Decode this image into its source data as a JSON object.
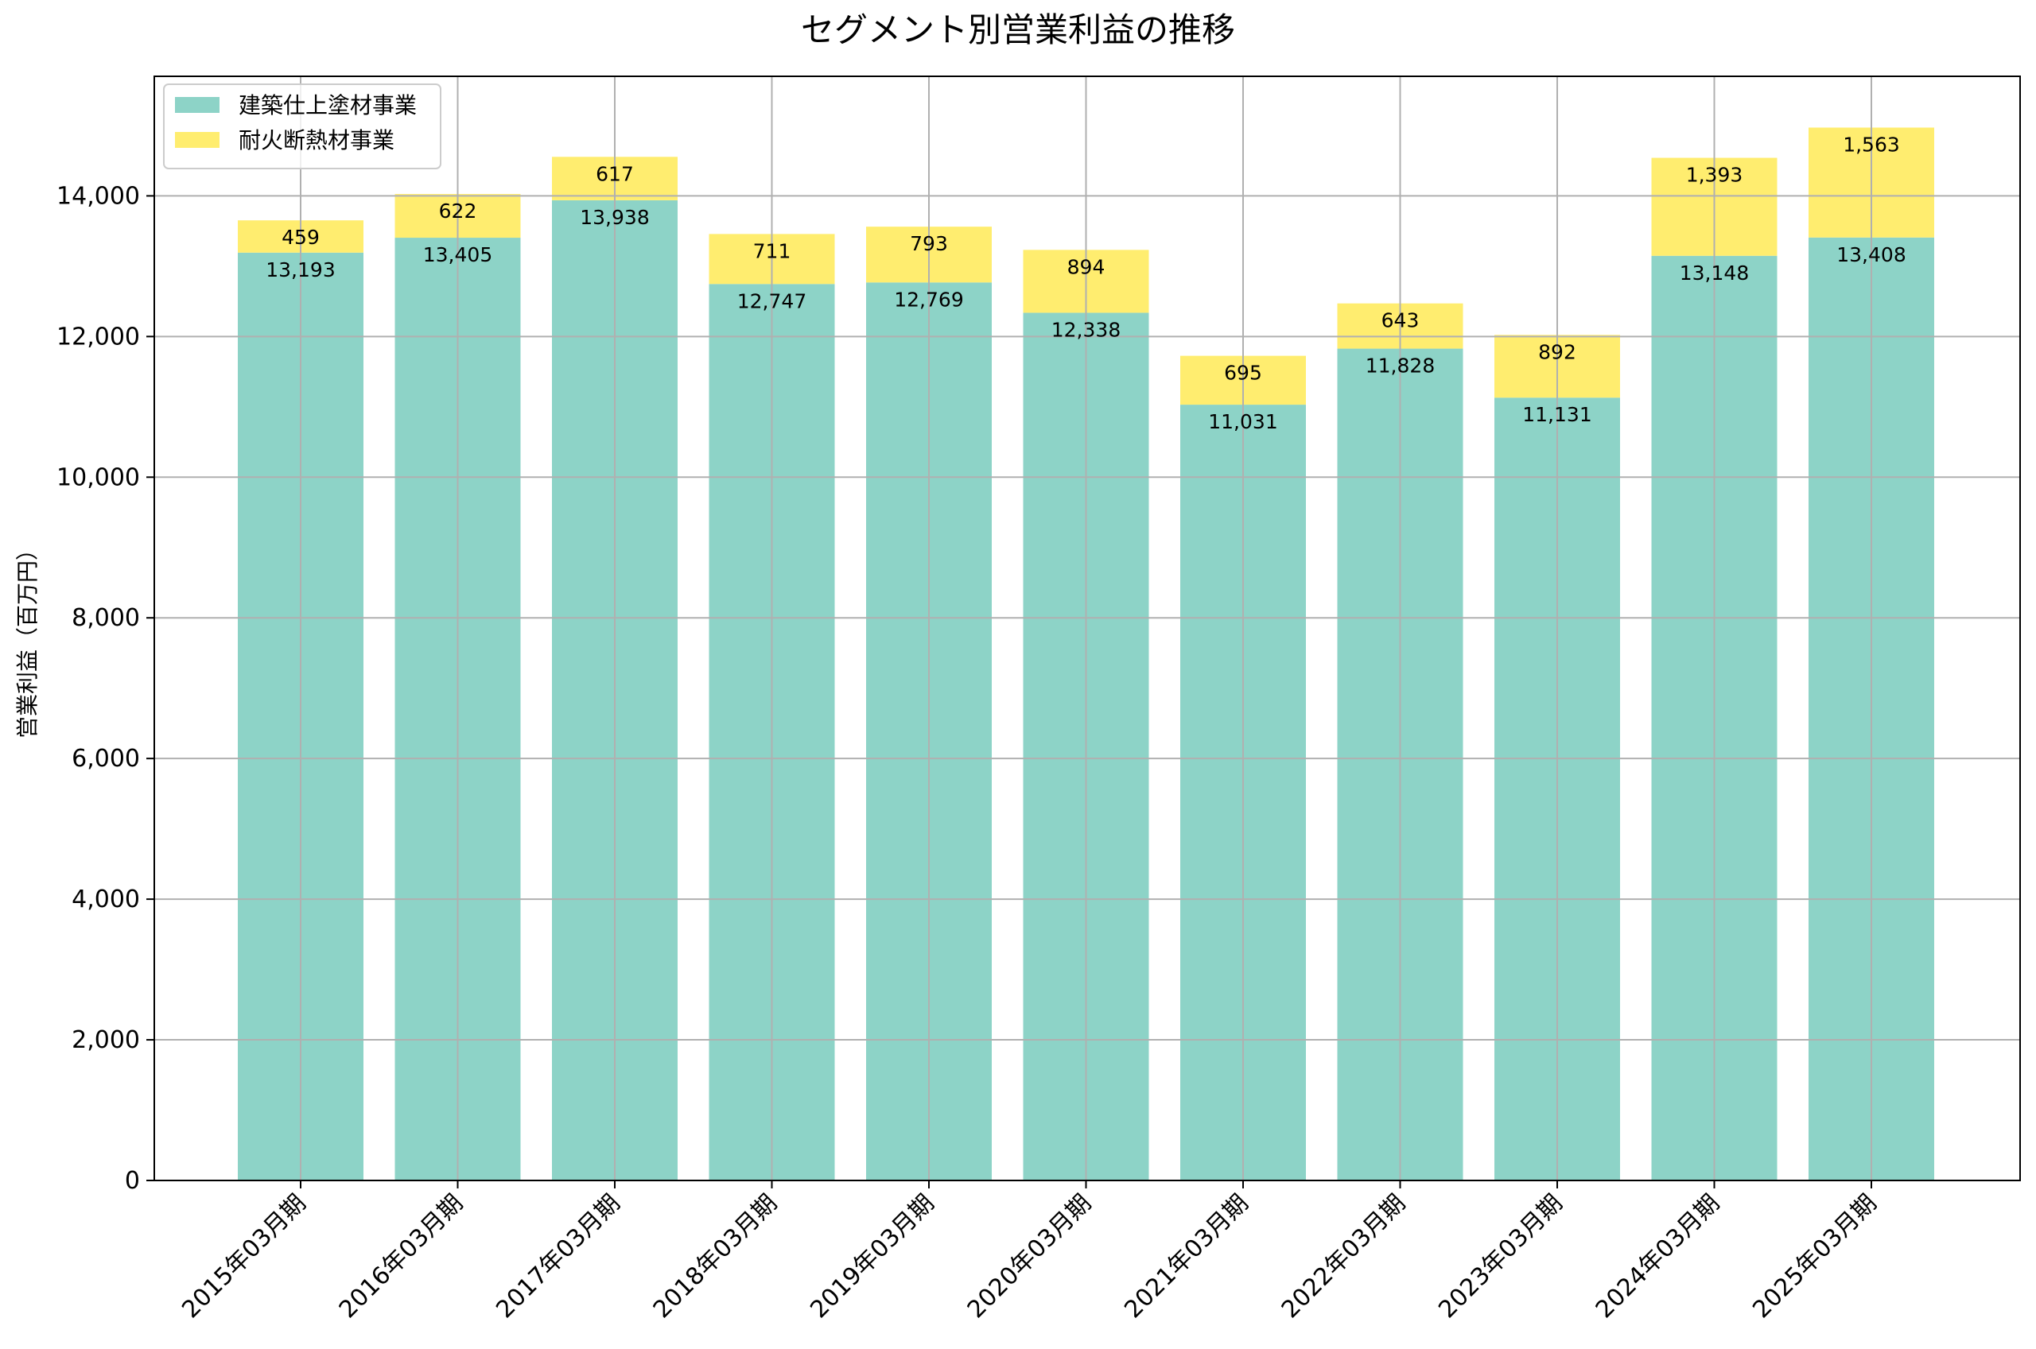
{
  "chart_data": {
    "type": "bar",
    "stacked": true,
    "title": "セグメント別営業利益の推移",
    "xlabel": "",
    "ylabel": "営業利益（百万円）",
    "ylim": [
      0,
      15700
    ],
    "yticks": [
      0,
      2000,
      4000,
      6000,
      8000,
      10000,
      12000,
      14000
    ],
    "ytick_labels": [
      "0",
      "2,000",
      "4,000",
      "6,000",
      "8,000",
      "10,000",
      "12,000",
      "14,000"
    ],
    "grid": true,
    "legend_position": "top-left",
    "categories": [
      "2015年03月期",
      "2016年03月期",
      "2017年03月期",
      "2018年03月期",
      "2019年03月期",
      "2020年03月期",
      "2021年03月期",
      "2022年03月期",
      "2023年03月期",
      "2024年03月期",
      "2025年03月期"
    ],
    "series": [
      {
        "name": "建築仕上塗材事業",
        "color": "#8dd3c7",
        "values": [
          13193,
          13405,
          13938,
          12747,
          12769,
          12338,
          11031,
          11828,
          11131,
          13148,
          13408
        ],
        "labels": [
          "13,193",
          "13,405",
          "13,938",
          "12,747",
          "12,769",
          "12,338",
          "11,031",
          "11,828",
          "11,131",
          "13,148",
          "13,408"
        ]
      },
      {
        "name": "耐火断熱材事業",
        "color": "#ffed6f",
        "values": [
          459,
          622,
          617,
          711,
          793,
          894,
          695,
          643,
          892,
          1393,
          1563
        ],
        "labels": [
          "459",
          "622",
          "617",
          "711",
          "793",
          "894",
          "695",
          "643",
          "892",
          "1,393",
          "1,563"
        ]
      }
    ]
  }
}
